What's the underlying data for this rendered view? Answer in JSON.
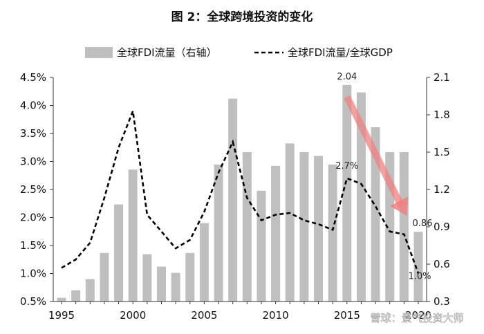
{
  "chart_data": {
    "type": "bar+line",
    "title": "图 2：全球跨境投资的变化",
    "legend": {
      "placement": "top",
      "bar_label": "全球FDI流量（右轴）",
      "line_label": "全球FDI流量/全球GDP"
    },
    "x": [
      1995,
      1996,
      1997,
      1998,
      1999,
      2000,
      2001,
      2002,
      2003,
      2004,
      2005,
      2006,
      2007,
      2008,
      2009,
      2010,
      2011,
      2012,
      2013,
      2014,
      2015,
      2016,
      2017,
      2018,
      2019,
      2020
    ],
    "x_tick_labels": [
      "1995",
      "2000",
      "2005",
      "2010",
      "2015",
      "2020"
    ],
    "series": [
      {
        "name": "全球FDI流量（右轴）",
        "type": "bar",
        "axis": "right",
        "color": "#bfbfbf",
        "values": [
          0.33,
          0.39,
          0.48,
          0.69,
          1.08,
          1.36,
          0.68,
          0.58,
          0.53,
          0.69,
          0.93,
          1.4,
          1.93,
          1.5,
          1.19,
          1.39,
          1.57,
          1.5,
          1.47,
          1.4,
          2.04,
          1.98,
          1.7,
          1.5,
          1.5,
          0.86
        ]
      },
      {
        "name": "全球FDI流量/全球GDP",
        "type": "line",
        "axis": "left",
        "style": "dashed",
        "color": "#000000",
        "values": [
          1.1,
          1.25,
          1.55,
          2.35,
          3.25,
          3.9,
          2.05,
          1.75,
          1.45,
          1.6,
          2.1,
          2.8,
          3.35,
          2.35,
          1.95,
          2.05,
          2.08,
          1.95,
          1.88,
          1.78,
          2.7,
          2.6,
          2.2,
          1.75,
          1.7,
          1.0
        ]
      }
    ],
    "y_left": {
      "min": 0.005,
      "max": 0.045,
      "ticks": [
        "0.5%",
        "1.0%",
        "1.5%",
        "2.0%",
        "2.5%",
        "3.0%",
        "3.5%",
        "4.0%",
        "4.5%"
      ]
    },
    "y_right": {
      "min": 0.3,
      "max": 2.1,
      "ticks": [
        "0.3",
        "0.6",
        "0.9",
        "1.2",
        "1.5",
        "1.8",
        "2.1"
      ]
    },
    "annotations": [
      {
        "text": "2.04",
        "x": 2015,
        "series": "bar"
      },
      {
        "text": "0.86",
        "x": 2020,
        "series": "bar"
      },
      {
        "text": "2.7%",
        "x": 2015,
        "series": "line"
      },
      {
        "text": "1.0%",
        "x": 2020,
        "series": "line"
      }
    ],
    "arrow": {
      "from_x": 2015,
      "to_x": 2019,
      "color": "#f08080"
    },
    "grid": false
  },
  "watermark": "雪球：景气投资大师"
}
